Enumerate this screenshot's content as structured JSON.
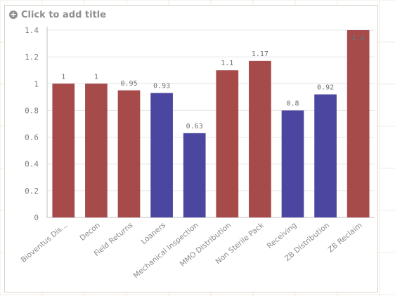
{
  "header": {
    "title_placeholder": "Click to add title",
    "add_icon": "plus-circle-icon"
  },
  "colors": {
    "red": "#a64a4a",
    "blue": "#4b47a0",
    "grid": "#e6e6e6",
    "axis": "#bfbfbf"
  },
  "chart_data": {
    "type": "bar",
    "title": "",
    "xlabel": "",
    "ylabel": "",
    "ylim": [
      0,
      1.4
    ],
    "yticks": [
      0,
      0.2,
      0.4,
      0.6,
      0.8,
      1,
      1.2,
      1.4
    ],
    "ytick_labels": [
      "0",
      "0.2",
      "0.4",
      "0.6",
      "0.8",
      "1",
      "1.2",
      "1.4"
    ],
    "grid": true,
    "categories": [
      "Bioventus Dis...",
      "Decon",
      "Field Returns",
      "Loaners",
      "Mechanical Inspection",
      "MMO Distribution",
      "Non Sterile Pack",
      "Receiving",
      "ZB Distribution",
      "ZB Reclaim"
    ],
    "values": [
      1,
      1,
      0.95,
      0.93,
      0.63,
      1.1,
      1.17,
      0.8,
      0.92,
      1.4
    ],
    "value_labels": [
      "1",
      "1",
      "0.95",
      "0.93",
      "0.63",
      "1.1",
      "1.17",
      "0.8",
      "0.92",
      "1.4"
    ],
    "bar_colors": [
      "red",
      "red",
      "red",
      "blue",
      "blue",
      "red",
      "red",
      "blue",
      "blue",
      "red"
    ]
  }
}
